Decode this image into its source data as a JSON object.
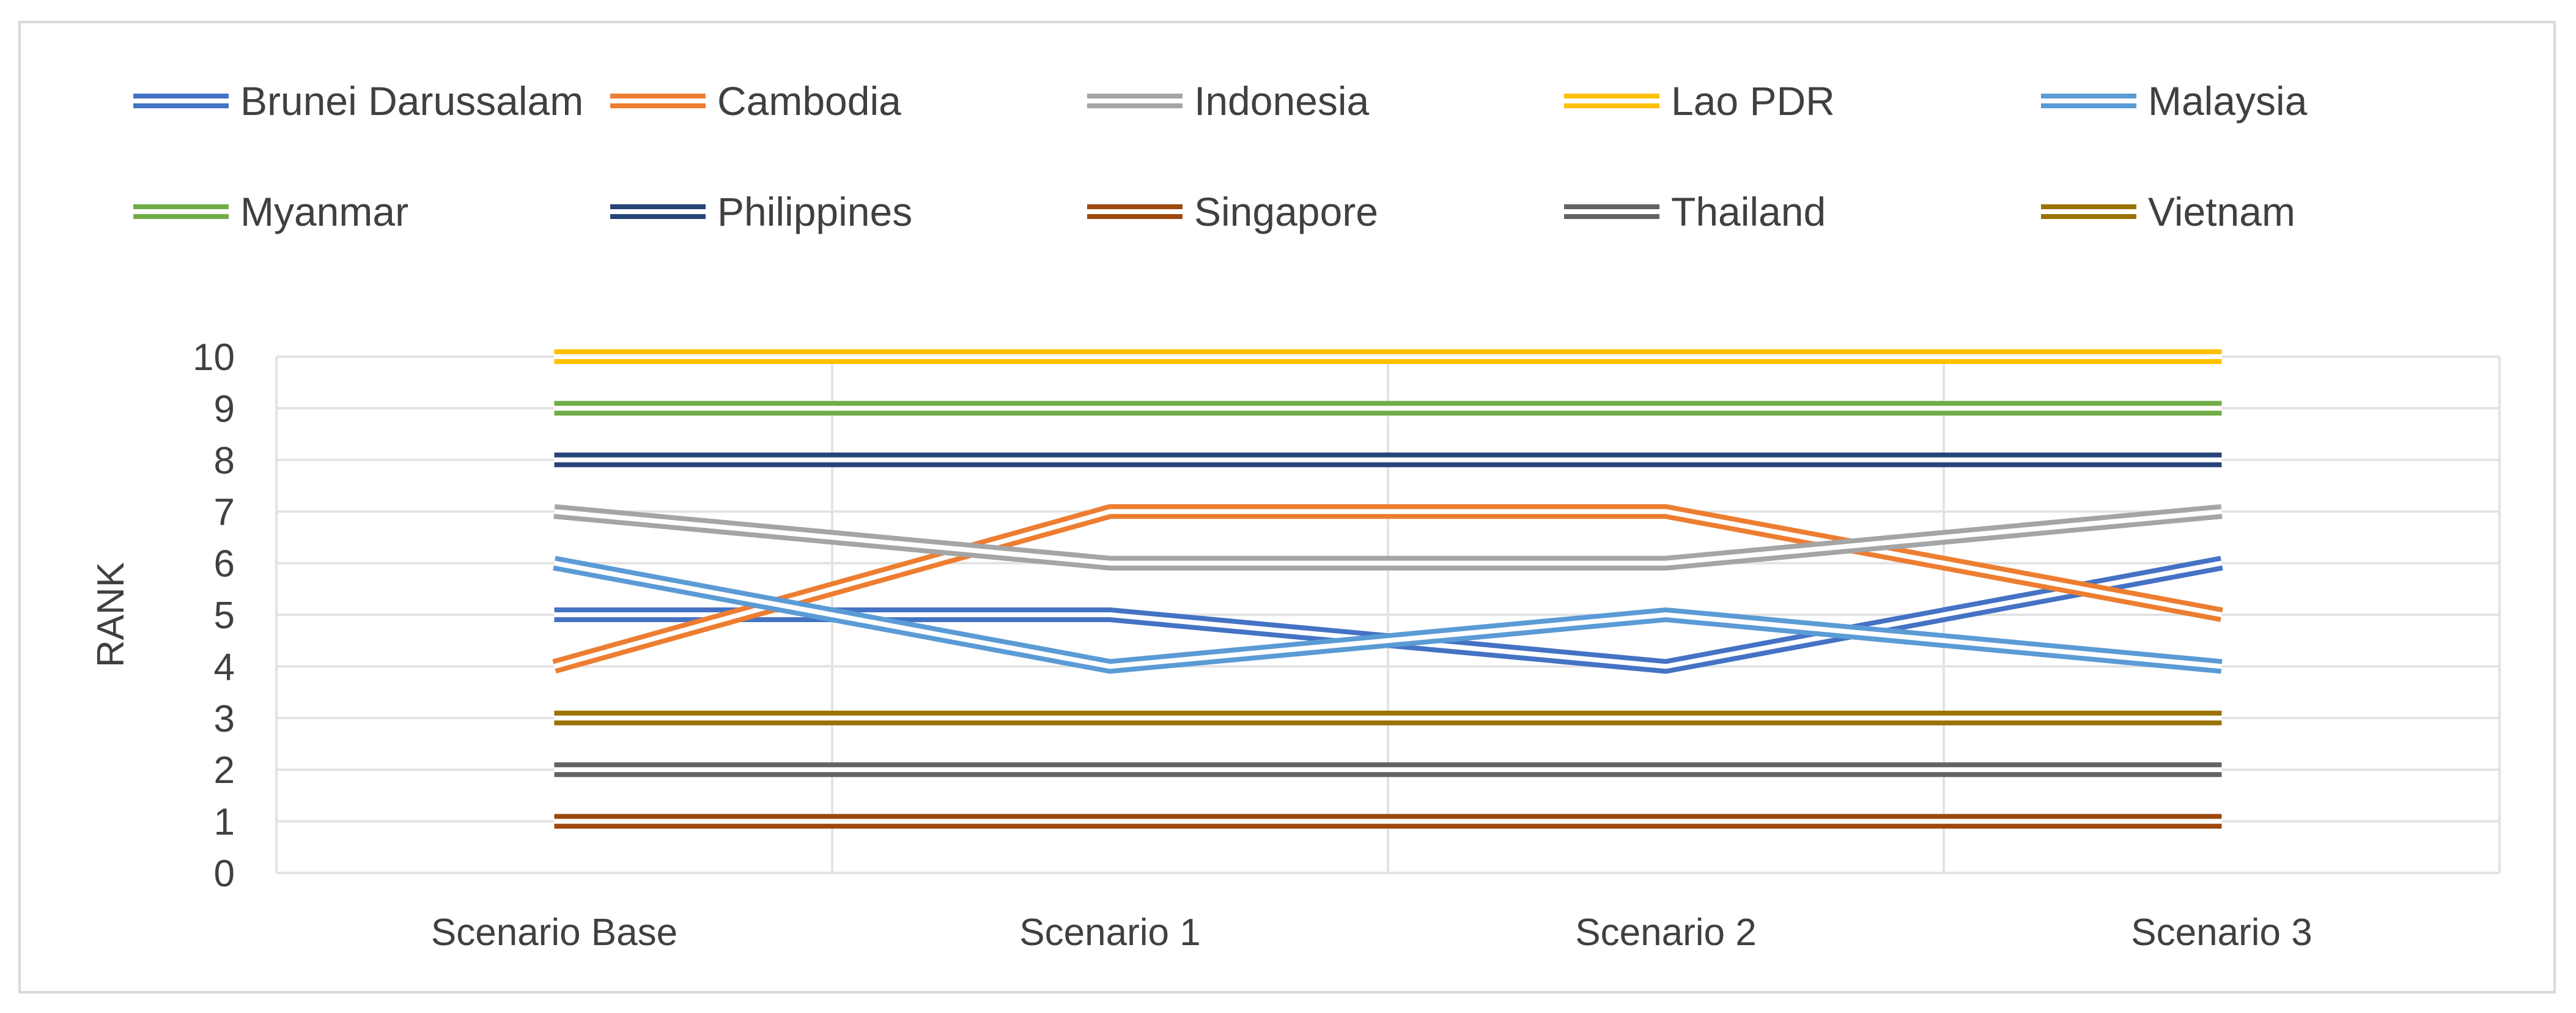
{
  "chart_data": {
    "type": "line",
    "categories": [
      "Scenario Base",
      "Scenario 1",
      "Scenario 2",
      "Scenario 3"
    ],
    "ylabel": "RANK",
    "ylim": [
      0,
      10
    ],
    "yticks": [
      0,
      1,
      2,
      3,
      4,
      5,
      6,
      7,
      8,
      9,
      10
    ],
    "grid": true,
    "legend_position": "top",
    "series": [
      {
        "name": "Brunei Darussalam",
        "color": "#4472C4",
        "values": [
          5,
          5,
          4,
          6
        ]
      },
      {
        "name": "Cambodia",
        "color": "#ED7D31",
        "values": [
          4,
          7,
          7,
          5
        ]
      },
      {
        "name": "Indonesia",
        "color": "#A5A5A5",
        "values": [
          7,
          6,
          6,
          7
        ]
      },
      {
        "name": "Lao PDR",
        "color": "#FFC000",
        "values": [
          10,
          10,
          10,
          10
        ]
      },
      {
        "name": "Malaysia",
        "color": "#5B9BD5",
        "values": [
          6,
          4,
          5,
          4
        ]
      },
      {
        "name": "Myanmar",
        "color": "#70AD47",
        "values": [
          9,
          9,
          9,
          9
        ]
      },
      {
        "name": "Philippines",
        "color": "#264478",
        "values": [
          8,
          8,
          8,
          8
        ]
      },
      {
        "name": "Singapore",
        "color": "#9E480E",
        "values": [
          1,
          1,
          1,
          1
        ]
      },
      {
        "name": "Thailand",
        "color": "#636363",
        "values": [
          2,
          2,
          2,
          2
        ]
      },
      {
        "name": "Vietnam",
        "color": "#997300",
        "values": [
          3,
          3,
          3,
          3
        ]
      }
    ]
  }
}
